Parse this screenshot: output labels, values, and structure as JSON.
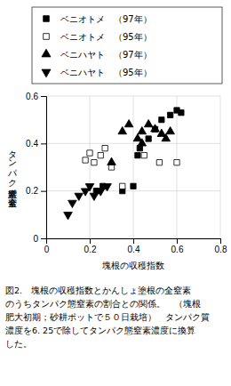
{
  "chart_data": {
    "type": "scatter",
    "xlabel": "塊根の収穫指数",
    "ylabel": "タンパク態窒素／全窒素",
    "xlim": [
      0,
      0.8
    ],
    "ylim": [
      0,
      0.6
    ],
    "xticks": [
      0,
      0.2,
      0.4,
      0.6,
      0.8
    ],
    "yticks": [
      0,
      0.2,
      0.4,
      0.6
    ],
    "grid": true,
    "legend": "top",
    "series": [
      {
        "name": "ベニオトメ　（97年）",
        "marker": "square",
        "color": "black",
        "x": [
          0.43,
          0.47,
          0.5,
          0.53,
          0.57,
          0.6,
          0.62,
          0.35,
          0.4,
          0.42,
          0.23,
          0.26
        ],
        "values": [
          0.38,
          0.42,
          0.46,
          0.5,
          0.52,
          0.54,
          0.53,
          0.2,
          0.22,
          0.35,
          0.2,
          0.22
        ]
      },
      {
        "name": "ベニオトメ　（95年）",
        "marker": "square-open",
        "color": "black",
        "x": [
          0.18,
          0.2,
          0.22,
          0.25,
          0.27,
          0.3,
          0.35,
          0.45,
          0.52,
          0.6
        ],
        "values": [
          0.33,
          0.36,
          0.32,
          0.35,
          0.38,
          0.3,
          0.22,
          0.35,
          0.32,
          0.32
        ]
      },
      {
        "name": "ベニハヤト　（97年）",
        "marker": "triangle-up",
        "color": "black",
        "x": [
          0.3,
          0.35,
          0.38,
          0.42,
          0.44,
          0.47,
          0.5,
          0.53,
          0.55,
          0.57,
          0.44
        ],
        "values": [
          0.32,
          0.45,
          0.48,
          0.42,
          0.45,
          0.48,
          0.46,
          0.44,
          0.42,
          0.45,
          0.4
        ]
      },
      {
        "name": "ベニハヤト　（95年）",
        "marker": "triangle-down",
        "color": "black",
        "x": [
          0.1,
          0.12,
          0.15,
          0.18,
          0.2,
          0.22,
          0.25,
          0.28
        ],
        "values": [
          0.1,
          0.15,
          0.18,
          0.2,
          0.22,
          0.18,
          0.2,
          0.22
        ]
      }
    ],
    "annotations": [
      "図2.　塊根の収穫指数とかんしょ塗根の全窒素",
      "のうちタンパク態窒素の割合との関係。　（塊根",
      "肥大初期；砂耕ポットで５０日栽培）　タンパク質",
      "濃度を6. 25で除してタンパク態窒素濃度に換算",
      "した。"
    ]
  }
}
